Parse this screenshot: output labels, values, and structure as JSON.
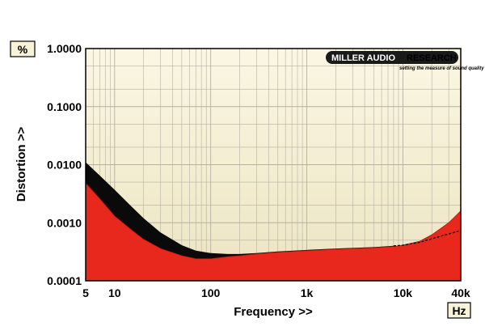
{
  "chart_data": {
    "type": "area",
    "xlabel": "Frequency >>",
    "ylabel": "Distortion >>",
    "y_unit": "%",
    "x_unit": "Hz",
    "x_scale": "log",
    "y_scale": "log",
    "xlim": [
      5,
      40000
    ],
    "ylim": [
      0.0001,
      1.0
    ],
    "x_ticks": [
      {
        "value": 5,
        "label": "5"
      },
      {
        "value": 10,
        "label": "10"
      },
      {
        "value": 100,
        "label": "100"
      },
      {
        "value": 1000,
        "label": "1k"
      },
      {
        "value": 10000,
        "label": "10k"
      },
      {
        "value": 40000,
        "label": "40k"
      }
    ],
    "y_ticks": [
      {
        "value": 1.0,
        "label": "1.0000"
      },
      {
        "value": 0.1,
        "label": "0.1000"
      },
      {
        "value": 0.01,
        "label": "0.0100"
      },
      {
        "value": 0.001,
        "label": "0.0010"
      },
      {
        "value": 0.0001,
        "label": "0.0001"
      }
    ],
    "grid": true,
    "series": [
      {
        "style": "filled-area",
        "color": "#e8281c",
        "x": [
          5,
          7,
          10,
          15,
          20,
          30,
          50,
          70,
          100,
          150,
          200,
          300,
          500,
          1000,
          2000,
          5000,
          8000,
          10000,
          15000,
          20000,
          30000,
          40000
        ],
        "y": [
          0.0048,
          0.0026,
          0.0013,
          0.00075,
          0.00052,
          0.00036,
          0.00027,
          0.00024,
          0.00024,
          0.00026,
          0.00027,
          0.00029,
          0.00031,
          0.00033,
          0.00035,
          0.00037,
          0.00039,
          0.00041,
          0.00048,
          0.00062,
          0.001,
          0.0016
        ]
      },
      {
        "style": "filled-band",
        "color": "#0a0a0a",
        "x": [
          5,
          7,
          10,
          15,
          20,
          30,
          50,
          70,
          100,
          150,
          200,
          300,
          500,
          1000,
          2000,
          5000,
          8000
        ],
        "y": [
          0.011,
          0.0065,
          0.0037,
          0.0019,
          0.0012,
          0.00068,
          0.00041,
          0.00033,
          0.0003,
          0.00029,
          0.00029,
          0.0003,
          0.00032,
          0.00034,
          0.00036,
          0.00038,
          0.0004
        ]
      },
      {
        "style": "dashed-line",
        "color": "#000000",
        "x": [
          8000,
          10000,
          15000,
          20000,
          30000,
          40000
        ],
        "y": [
          0.0004,
          0.00041,
          0.00046,
          0.00053,
          0.00064,
          0.00074
        ]
      }
    ]
  },
  "logo": {
    "text_left": "MILLER AUDIO",
    "text_right": "RESEARCH",
    "tagline": "setting the measure of sound quality"
  },
  "colors": {
    "plot_background": "#f8f3d8",
    "red_fill": "#e8281c",
    "black_band": "#0a0a0a",
    "grid": "#b5b0a2",
    "frame": "#000000"
  }
}
